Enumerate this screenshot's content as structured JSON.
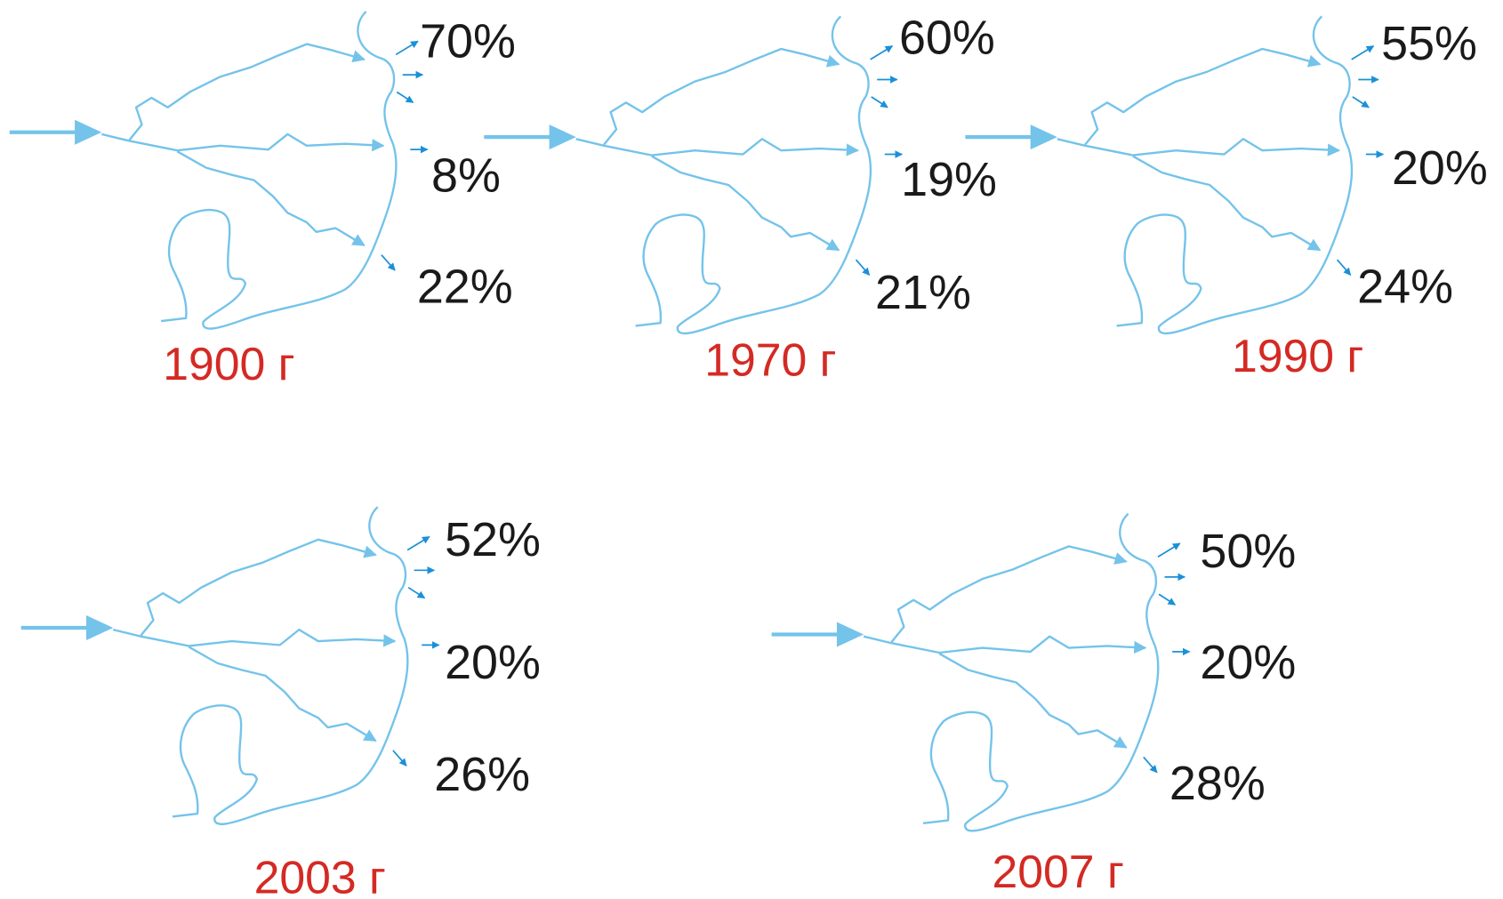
{
  "panels": [
    {
      "year": "1900 г",
      "shares": [
        "70%",
        "8%",
        "22%"
      ]
    },
    {
      "year": "1970 г",
      "shares": [
        "60%",
        "19%",
        "21%"
      ]
    },
    {
      "year": "1990 г",
      "shares": [
        "55%",
        "20%",
        "24%"
      ]
    },
    {
      "year": "2003 г",
      "shares": [
        "52%",
        "20%",
        "26%"
      ]
    },
    {
      "year": "2007 г",
      "shares": [
        "50%",
        "20%",
        "28%"
      ]
    }
  ]
}
